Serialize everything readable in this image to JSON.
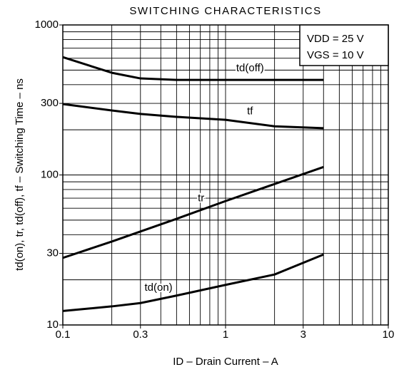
{
  "chart_data": {
    "type": "line",
    "title": "SWITCHING CHARACTERISTICS",
    "xlabel": "ID – Drain Current – A",
    "ylabel": "td(on), tr, td(off), tf – Switching Time – ns",
    "annotations": [
      "VDD = 25 V",
      "VGS = 10 V"
    ],
    "xscale": "log",
    "yscale": "log",
    "xlim": [
      0.1,
      10
    ],
    "ylim": [
      10,
      1000
    ],
    "xticks": [
      0.1,
      0.3,
      1,
      3,
      10
    ],
    "yticks": [
      10,
      30,
      100,
      300,
      1000
    ],
    "xgrid": [
      0.2,
      0.3,
      0.4,
      0.5,
      0.6,
      0.7,
      0.8,
      0.9,
      1,
      2,
      3,
      4,
      5,
      6,
      7,
      8,
      9
    ],
    "ygrid": [
      20,
      30,
      40,
      50,
      60,
      70,
      80,
      90,
      100,
      200,
      300,
      400,
      500,
      600,
      700,
      800,
      900
    ],
    "x": [
      0.1,
      0.2,
      0.3,
      0.5,
      1,
      2,
      4
    ],
    "series": [
      {
        "name": "td(off)",
        "color": "#000000",
        "values": [
          610,
          480,
          440,
          430,
          430,
          430,
          430
        ]
      },
      {
        "name": "tf",
        "color": "#000000",
        "values": [
          297,
          269,
          255,
          244,
          233,
          211,
          205
        ]
      },
      {
        "name": "tr",
        "color": "#000000",
        "values": [
          28,
          36,
          42,
          51,
          67,
          87,
          113
        ]
      },
      {
        "name": "td(on)",
        "color": "#000000",
        "values": [
          12.4,
          13.3,
          14,
          15.7,
          18.5,
          21.7,
          29.5
        ]
      }
    ]
  }
}
